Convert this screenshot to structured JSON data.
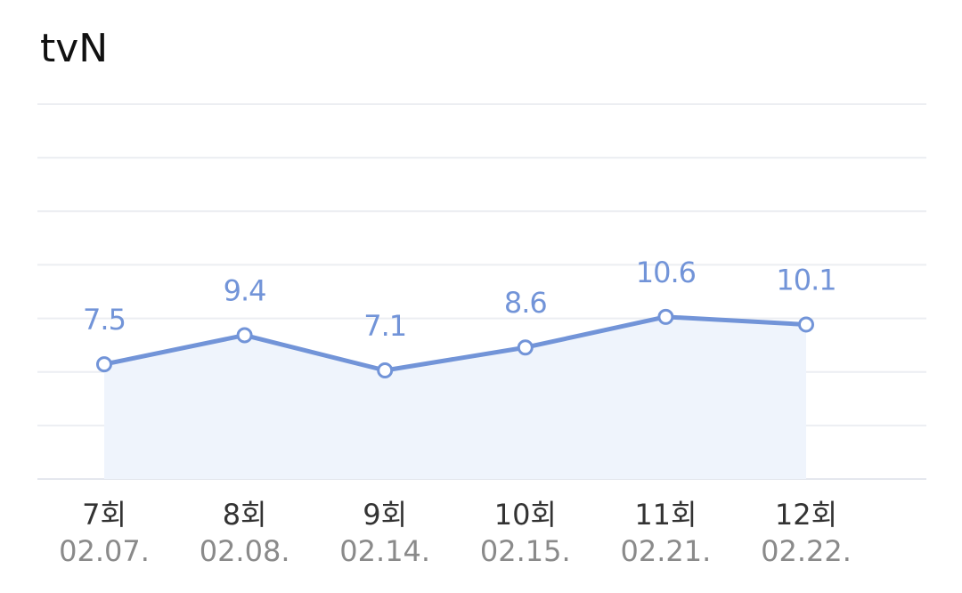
{
  "chart_data": {
    "type": "line",
    "title": "tvN",
    "categories": [
      "7회",
      "8회",
      "9회",
      "10회",
      "11회",
      "12회"
    ],
    "dates": [
      "02.07.",
      "02.08.",
      "02.14.",
      "02.15.",
      "02.21.",
      "02.22."
    ],
    "values": [
      7.5,
      9.4,
      7.1,
      8.6,
      10.6,
      10.1
    ],
    "color": "#7294d8",
    "area_color": "#eff4fc",
    "ylim": [
      0,
      24.5
    ],
    "yticks": [
      0,
      3.5,
      7,
      10.5,
      14,
      17.5,
      21,
      24.5
    ],
    "grid": true
  }
}
